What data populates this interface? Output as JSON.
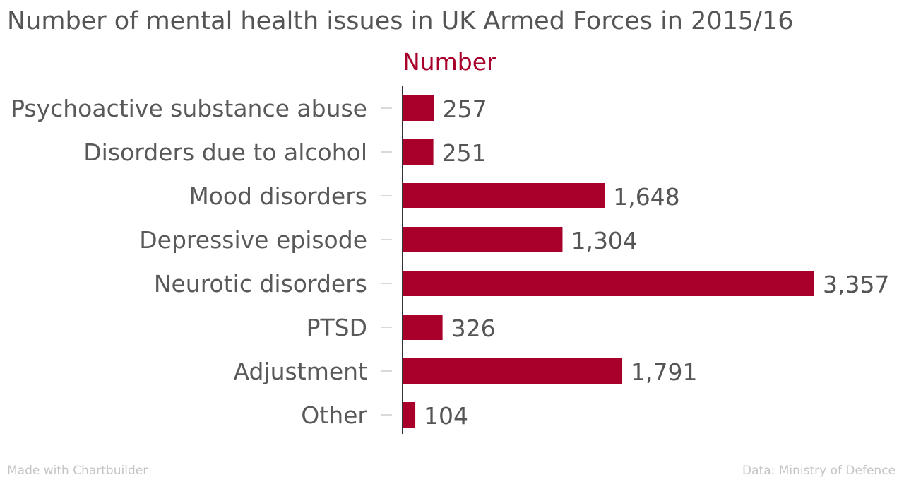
{
  "chart_data": {
    "type": "bar",
    "orientation": "horizontal",
    "title": "Number of mental health issues in UK Armed Forces in 2015/16",
    "series_name": "Number",
    "categories": [
      "Psychoactive substance abuse",
      "Disorders due to alcohol",
      "Mood disorders",
      "Depressive episode",
      "Neurotic disorders",
      "PTSD",
      "Adjustment",
      "Other"
    ],
    "values": [
      257,
      251,
      1648,
      1304,
      3357,
      326,
      1791,
      104
    ],
    "value_labels": [
      "257",
      "251",
      "1,648",
      "1,304",
      "3,357",
      "326",
      "1,791",
      "104"
    ],
    "xlim": [
      0,
      3357
    ],
    "color": "#a8002a",
    "grid": false
  },
  "footer": {
    "credit": "Made with Chartbuilder",
    "source": "Data: Ministry of Defence"
  }
}
